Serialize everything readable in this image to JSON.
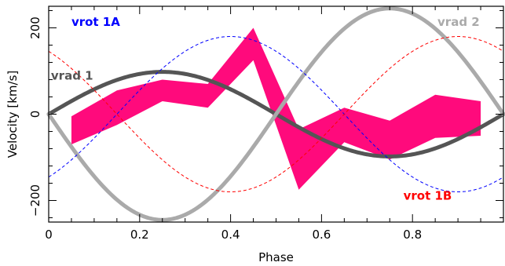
{
  "chart_data": {
    "type": "line",
    "xlabel": "Phase",
    "ylabel": "Velocity  [km/s]",
    "xlim": [
      0,
      1
    ],
    "ylim": [
      -250,
      250
    ],
    "x_ticks": [
      0,
      0.2,
      0.4,
      0.6,
      0.8
    ],
    "x_tick_labels": [
      "0",
      "0.2",
      "0.4",
      "0.6",
      "0.8"
    ],
    "y_ticks": [
      -200,
      0,
      200
    ],
    "y_tick_labels": [
      "−200",
      "0",
      "200"
    ],
    "grid": false,
    "series": [
      {
        "name": "vrad 1",
        "kind": "sine",
        "amplitude": 98,
        "offset": 0,
        "phase_shift": 0,
        "color": "#555555",
        "style": "thick"
      },
      {
        "name": "vrad 2",
        "kind": "sine",
        "amplitude": -245,
        "offset": 0,
        "phase_shift": 0,
        "color": "#aaaaaa",
        "style": "thick"
      },
      {
        "name": "vrot 1A",
        "kind": "sine",
        "amplitude": 180,
        "offset": 0,
        "phase_shift": 0.15,
        "color": "#0000ff",
        "style": "dashed"
      },
      {
        "name": "vrot 1B",
        "kind": "sine",
        "amplitude": -180,
        "offset": 0,
        "phase_shift": 0.15,
        "color": "#ff0000",
        "style": "dashed"
      }
    ],
    "band": {
      "color": "#ff0a7c",
      "x": [
        0.05,
        0.15,
        0.25,
        0.35,
        0.45,
        0.55,
        0.65,
        0.75,
        0.85,
        0.95
      ],
      "upper": [
        -5,
        55,
        80,
        70,
        200,
        -35,
        15,
        -15,
        45,
        30
      ],
      "lower": [
        -70,
        -25,
        30,
        15,
        125,
        -175,
        -65,
        -105,
        -55,
        -50
      ]
    },
    "labels": [
      {
        "text": "vrot 1A",
        "color": "#0000ff",
        "at": [
          0.05,
          205
        ]
      },
      {
        "text": "vrad 1",
        "color": "#555555",
        "at": [
          0.005,
          80
        ]
      },
      {
        "text": "vrad 2",
        "color": "#aaaaaa",
        "at": [
          0.855,
          205
        ]
      },
      {
        "text": "vrot 1B",
        "color": "#ff0000",
        "at": [
          0.78,
          -198
        ]
      }
    ]
  }
}
